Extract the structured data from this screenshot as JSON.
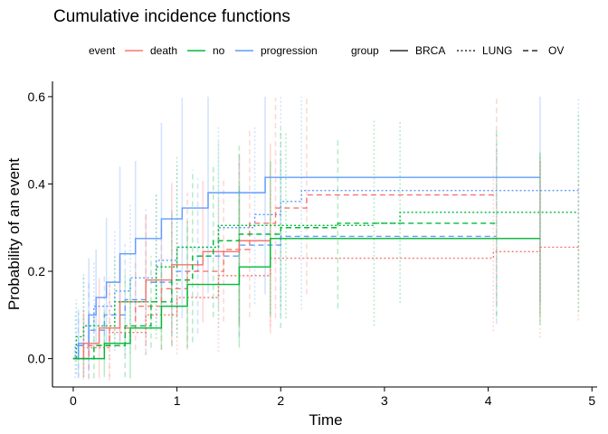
{
  "chart_data": {
    "type": "line",
    "subtype": "step",
    "title": "Cumulative incidence functions",
    "xlabel": "Time",
    "ylabel": "Probability of an event",
    "xlim": [
      -0.2,
      5.05
    ],
    "ylim": [
      -0.065,
      0.635
    ],
    "x_ticks": [
      0,
      1,
      2,
      3,
      4,
      5
    ],
    "y_ticks": [
      0.0,
      0.2,
      0.4,
      0.6
    ],
    "x_tick_labels": [
      "0",
      "1",
      "2",
      "3",
      "4",
      "5"
    ],
    "y_tick_labels": [
      "0.0",
      "0.2",
      "0.4",
      "0.6"
    ],
    "grid": false,
    "legend_position": "top",
    "legend": {
      "color_title": "event",
      "color_entries": [
        {
          "key": "death",
          "label": "death",
          "color": "#F8766D"
        },
        {
          "key": "no",
          "label": "no",
          "color": "#00BA38"
        },
        {
          "key": "progression",
          "label": "progression",
          "color": "#619CFF"
        }
      ],
      "linetype_title": "group",
      "linetype_entries": [
        {
          "key": "BRCA",
          "label": "BRCA",
          "dash": "solid"
        },
        {
          "key": "LUNG",
          "label": "LUNG",
          "dash": "dotted"
        },
        {
          "key": "OV",
          "label": "OV",
          "dash": "dashed"
        }
      ]
    },
    "series": [
      {
        "event": "progression",
        "group": "BRCA",
        "x": [
          0,
          0.05,
          0.15,
          0.22,
          0.32,
          0.45,
          0.6,
          0.85,
          1.05,
          1.3,
          1.85,
          4.5
        ],
        "y": [
          0,
          0.035,
          0.1,
          0.14,
          0.175,
          0.24,
          0.275,
          0.32,
          0.345,
          0.38,
          0.415,
          0.415
        ]
      },
      {
        "event": "progression",
        "group": "LUNG",
        "x": [
          0,
          0.02,
          0.1,
          0.2,
          0.4,
          0.55,
          0.8,
          1.0,
          1.4,
          1.75,
          2.0,
          2.2,
          4.87
        ],
        "y": [
          0,
          0.03,
          0.075,
          0.12,
          0.155,
          0.185,
          0.225,
          0.255,
          0.3,
          0.33,
          0.36,
          0.385,
          0.385
        ]
      },
      {
        "event": "progression",
        "group": "OV",
        "x": [
          0,
          0.05,
          0.15,
          0.3,
          0.5,
          0.7,
          0.95,
          1.2,
          1.6,
          2.0,
          4.08
        ],
        "y": [
          0,
          0.03,
          0.065,
          0.1,
          0.135,
          0.175,
          0.2,
          0.235,
          0.26,
          0.28,
          0.28
        ]
      },
      {
        "event": "death",
        "group": "BRCA",
        "x": [
          0,
          0.1,
          0.25,
          0.45,
          0.7,
          0.95,
          1.25,
          1.6,
          1.9,
          4.5
        ],
        "y": [
          0,
          0.035,
          0.07,
          0.13,
          0.18,
          0.215,
          0.245,
          0.27,
          0.275,
          0.275
        ]
      },
      {
        "event": "death",
        "group": "LUNG",
        "x": [
          0,
          0.1,
          0.35,
          0.7,
          1.0,
          1.4,
          1.9,
          4.05,
          4.5,
          4.87
        ],
        "y": [
          0,
          0.025,
          0.06,
          0.1,
          0.14,
          0.19,
          0.23,
          0.245,
          0.255,
          0.255
        ]
      },
      {
        "event": "death",
        "group": "OV",
        "x": [
          0,
          0.15,
          0.35,
          0.6,
          0.85,
          1.1,
          1.45,
          1.7,
          1.95,
          2.25,
          4.08
        ],
        "y": [
          0,
          0.03,
          0.07,
          0.12,
          0.16,
          0.2,
          0.25,
          0.31,
          0.345,
          0.375,
          0.375
        ]
      },
      {
        "event": "no",
        "group": "BRCA",
        "x": [
          0,
          0.3,
          0.55,
          0.85,
          1.1,
          1.6,
          1.9,
          4.5
        ],
        "y": [
          0,
          0.035,
          0.07,
          0.12,
          0.17,
          0.21,
          0.275,
          0.275
        ]
      },
      {
        "event": "no",
        "group": "LUNG",
        "x": [
          0,
          0.03,
          0.1,
          0.4,
          0.8,
          1.0,
          1.4,
          2.05,
          2.9,
          3.15,
          4.87
        ],
        "y": [
          0,
          0.05,
          0.075,
          0.13,
          0.21,
          0.255,
          0.305,
          0.305,
          0.31,
          0.335,
          0.335
        ]
      },
      {
        "event": "no",
        "group": "OV",
        "x": [
          0,
          0.2,
          0.5,
          0.75,
          0.95,
          1.15,
          1.35,
          1.6,
          2.0,
          2.55,
          4.08
        ],
        "y": [
          0,
          0.03,
          0.075,
          0.13,
          0.18,
          0.235,
          0.27,
          0.285,
          0.3,
          0.31,
          0.31
        ]
      }
    ]
  }
}
